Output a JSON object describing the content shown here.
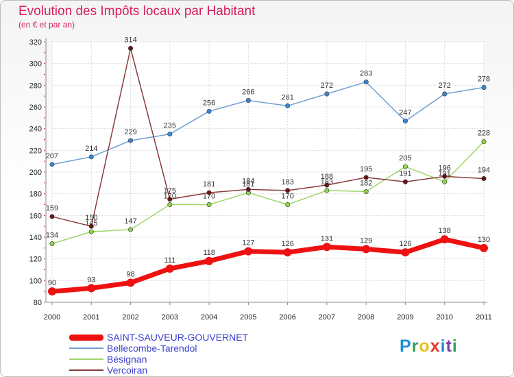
{
  "header": {
    "title": "Evolution des Impôts locaux par Habitant",
    "subtitle": "(en € et par an)"
  },
  "brand": {
    "letters": [
      "P",
      "r",
      "o",
      "x",
      "i",
      "t",
      "i"
    ],
    "colors": [
      "#1c8fd6",
      "#2fa35a",
      "#e8c21a",
      "#e23b2e",
      "#1c8fd6",
      "#7a3fa0",
      "#2fa35a"
    ]
  },
  "chart_data": {
    "type": "line",
    "x": [
      2000,
      2001,
      2002,
      2003,
      2004,
      2005,
      2006,
      2007,
      2008,
      2009,
      2010,
      2011
    ],
    "ylim": [
      80,
      320
    ],
    "yticks": [
      80,
      100,
      120,
      140,
      160,
      180,
      200,
      220,
      240,
      260,
      280,
      300,
      320
    ],
    "grid": true,
    "legend_position": "bottom-left",
    "series": [
      {
        "name": "SAINT-SAUVEUR-GOUVERNET",
        "color": "#ee1111",
        "values": [
          90,
          93,
          98,
          111,
          118,
          127,
          126,
          131,
          129,
          126,
          138,
          130
        ]
      },
      {
        "name": "Bellecombe-Tarendol",
        "color": "#6f9fd1",
        "marker": "#3a87d6",
        "values": [
          207,
          214,
          229,
          235,
          256,
          266,
          261,
          272,
          283,
          247,
          272,
          278
        ]
      },
      {
        "name": "Bésignan",
        "color": "#9ed66a",
        "marker": "#8fd84a",
        "values": [
          134,
          145,
          147,
          170,
          170,
          181,
          170,
          183,
          182,
          205,
          191,
          228
        ]
      },
      {
        "name": "Vercoiran",
        "color": "#8a3a3a",
        "marker": "#6a1515",
        "values": [
          159,
          150,
          314,
          175,
          181,
          184,
          183,
          188,
          195,
          191,
          196,
          194
        ]
      }
    ]
  }
}
